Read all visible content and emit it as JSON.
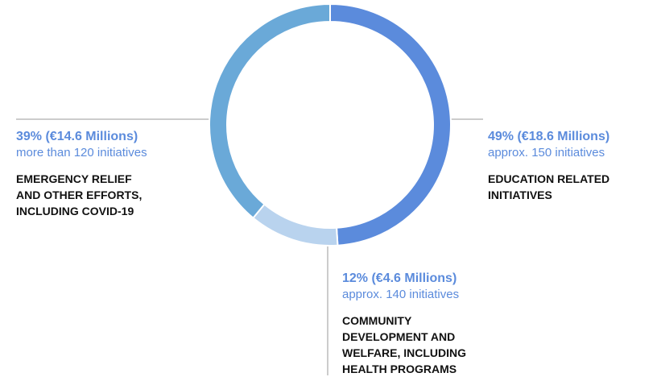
{
  "chart_data": {
    "type": "donut",
    "categories": [
      "EDUCATION RELATED INITIATIVES",
      "COMMUNITY DEVELOPMENT AND WELFARE, INCLUDING HEALTH PROGRAMS",
      "EMERGENCY RELIEF AND OTHER EFFORTS, INCLUDING COVID-19"
    ],
    "values": [
      49,
      12,
      39
    ],
    "value_labels": [
      "49% (€18.6 Millions)",
      "12% (€4.6 Millions)",
      "39% (€14.6 Millions)"
    ],
    "annotations": [
      "approx. 150 initiatives",
      "approx. 140 initiatives",
      "more than 120 initiatives"
    ],
    "colors": [
      "#5b8bdc",
      "#b9d3ee",
      "#6aa9d8"
    ]
  }
}
